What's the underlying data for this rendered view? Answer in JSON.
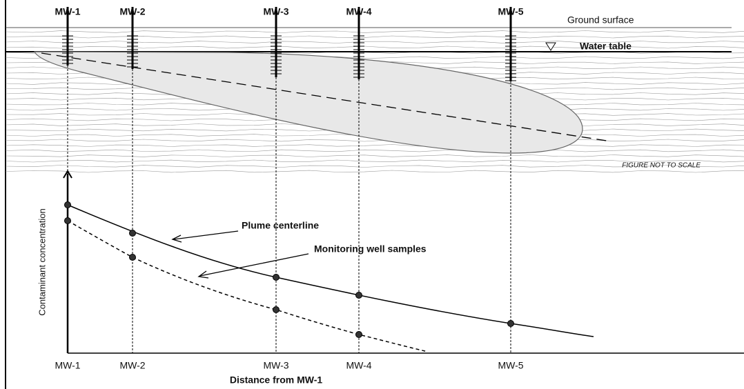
{
  "wells_top": [
    "MW-1",
    "MW-2",
    "MW-3",
    "MW-4",
    "MW-5"
  ],
  "wells_bottom": [
    "MW-1",
    "MW-2",
    "MW-3",
    "MW-4",
    "MW-5"
  ],
  "labels": {
    "ground_surface": "Ground surface",
    "water_table": "Water table",
    "scale_note": "FIGURE NOT TO SCALE",
    "plume_centerline": "Plume centerline",
    "monitoring_samples": "Monitoring well samples",
    "y_axis": "Contaminant concentration",
    "x_axis": "Distance from MW-1"
  }
}
